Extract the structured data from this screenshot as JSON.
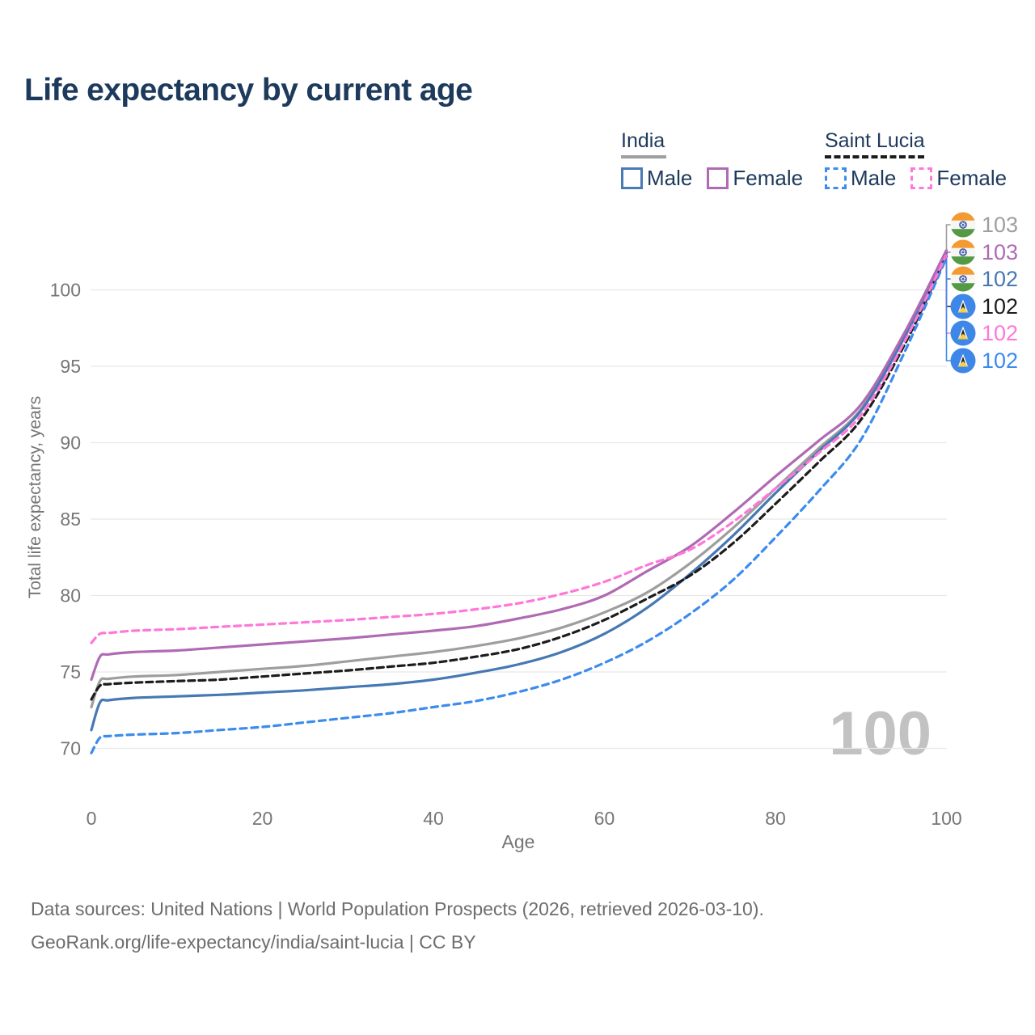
{
  "title": "Life expectancy by current age",
  "legend": {
    "groups": [
      {
        "label": "India",
        "line_style": "solid",
        "line_color": "#9e9e9e",
        "items": [
          {
            "label": "Male",
            "color": "#4a7ab5",
            "dashed": false
          },
          {
            "label": "Female",
            "color": "#b06ab4",
            "dashed": false
          }
        ]
      },
      {
        "label": "Saint Lucia",
        "line_style": "dashed",
        "line_color": "#1c1c1c",
        "items": [
          {
            "label": "Male",
            "color": "#3c8bee",
            "dashed": true
          },
          {
            "label": "Female",
            "color": "#ff77d8",
            "dashed": true
          }
        ]
      }
    ]
  },
  "chart_data": {
    "type": "line",
    "title": "Life expectancy by current age",
    "xlabel": "Age",
    "ylabel": "Total life expectancy, years",
    "x": [
      0,
      1,
      2,
      5,
      10,
      15,
      20,
      25,
      30,
      35,
      40,
      45,
      50,
      55,
      60,
      65,
      70,
      75,
      80,
      85,
      90,
      95,
      100
    ],
    "x_ticks": [
      0,
      20,
      40,
      60,
      80,
      100
    ],
    "y_ticks": [
      70,
      75,
      80,
      85,
      90,
      95,
      100
    ],
    "xlim": [
      0,
      100
    ],
    "ylim": [
      69,
      103.5
    ],
    "grid": true,
    "age_counter": "100",
    "series": [
      {
        "name": "India",
        "country": "India",
        "sex": "Both sexes",
        "color": "#9e9e9e",
        "dashed": false,
        "end_label": "103",
        "flag": "india-flag",
        "values": [
          72.7,
          74.4,
          74.55,
          74.7,
          74.8,
          75.0,
          75.2,
          75.4,
          75.7,
          76.0,
          76.3,
          76.7,
          77.2,
          77.9,
          78.9,
          80.2,
          82.1,
          84.4,
          87.0,
          89.6,
          92.2,
          96.9,
          102.5
        ]
      },
      {
        "name": "India Female",
        "country": "India",
        "sex": "Female",
        "color": "#b06ab4",
        "dashed": false,
        "end_label": "103",
        "flag": "india-flag",
        "values": [
          74.5,
          76.0,
          76.15,
          76.3,
          76.4,
          76.6,
          76.8,
          77.0,
          77.2,
          77.45,
          77.7,
          78.0,
          78.5,
          79.1,
          80.0,
          81.6,
          83.2,
          85.4,
          87.8,
          90.1,
          92.5,
          97.1,
          102.6
        ]
      },
      {
        "name": "India Male",
        "country": "India",
        "sex": "Male",
        "color": "#4678b4",
        "dashed": false,
        "end_label": "102",
        "flag": "india-flag",
        "values": [
          71.2,
          73.0,
          73.15,
          73.3,
          73.4,
          73.5,
          73.65,
          73.8,
          74.0,
          74.2,
          74.5,
          74.95,
          75.5,
          76.3,
          77.5,
          79.2,
          81.4,
          83.9,
          86.7,
          89.4,
          92.1,
          96.8,
          102.4
        ]
      },
      {
        "name": "Saint Lucia",
        "country": "Saint Lucia",
        "sex": "Both sexes",
        "color": "#1c1c1c",
        "dashed": true,
        "end_label": "102",
        "flag": "saint-lucia-flag",
        "values": [
          73.2,
          74.1,
          74.2,
          74.3,
          74.4,
          74.5,
          74.7,
          74.9,
          75.1,
          75.35,
          75.6,
          76.0,
          76.5,
          77.3,
          78.4,
          79.8,
          81.3,
          83.4,
          86.0,
          88.7,
          91.5,
          96.3,
          102.2
        ]
      },
      {
        "name": "Saint Lucia Female",
        "country": "Saint Lucia",
        "sex": "Female",
        "color": "#ff77d8",
        "dashed": true,
        "end_label": "102",
        "flag": "saint-lucia-flag",
        "values": [
          76.9,
          77.5,
          77.55,
          77.7,
          77.8,
          77.95,
          78.1,
          78.25,
          78.4,
          78.6,
          78.8,
          79.1,
          79.5,
          80.1,
          80.9,
          82.0,
          83.0,
          84.8,
          87.0,
          89.3,
          91.8,
          96.5,
          102.3
        ]
      },
      {
        "name": "Saint Lucia Male",
        "country": "Saint Lucia",
        "sex": "Male",
        "color": "#3c8bee",
        "dashed": true,
        "end_label": "102",
        "flag": "saint-lucia-flag",
        "values": [
          69.7,
          70.7,
          70.8,
          70.9,
          71.0,
          71.2,
          71.4,
          71.7,
          72.0,
          72.3,
          72.7,
          73.1,
          73.7,
          74.5,
          75.6,
          77.0,
          78.8,
          81.0,
          83.8,
          86.8,
          90.2,
          95.8,
          102.1
        ]
      }
    ],
    "legend_position": "top-right"
  },
  "footer": {
    "line1": "Data sources: United Nations | World Population Prospects (2026, retrieved 2026-03-10).",
    "line2": "GeoRank.org/life-expectancy/india/saint-lucia | CC BY"
  }
}
